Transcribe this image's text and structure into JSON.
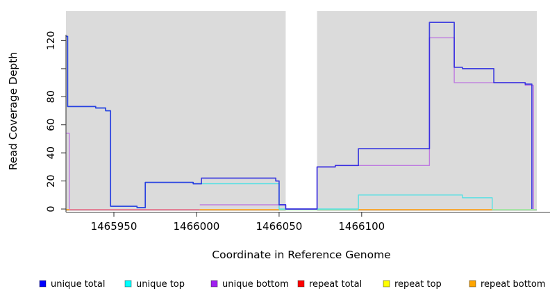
{
  "chart_data": {
    "type": "line",
    "subtype": "step-after-coverage-plot",
    "title": "",
    "xlabel": "Coordinate in Reference Genome",
    "ylabel": "Read Coverage Depth",
    "xlim": [
      1465921,
      1466206
    ],
    "ylim": [
      0,
      141
    ],
    "grid": false,
    "plot_background_color": "#DBDBDB",
    "gap_band": {
      "x0": 1466054,
      "x1": 1466073,
      "color": "#FFFFFF"
    },
    "background_bands": [
      {
        "x0": 1465921,
        "x1": 1466054,
        "color": "#DBDBDB"
      },
      {
        "x0": 1466073,
        "x1": 1466206,
        "color": "#DBDBDB"
      }
    ],
    "x_ticks": [
      {
        "value": 1465950,
        "label": "1465950"
      },
      {
        "value": 1466000,
        "label": "1466000"
      },
      {
        "value": 1466050,
        "label": "1466050"
      },
      {
        "value": 1466100,
        "label": "1466100"
      }
    ],
    "y_ticks": [
      {
        "value": 0,
        "label": "0"
      },
      {
        "value": 20,
        "label": "20"
      },
      {
        "value": 40,
        "label": "40"
      },
      {
        "value": 60,
        "label": "60"
      },
      {
        "value": 80,
        "label": "80"
      },
      {
        "value": 100,
        "label": ""
      },
      {
        "value": 120,
        "label": "120"
      }
    ],
    "series": [
      {
        "name": "unique top",
        "color": "#55E0E4",
        "width": 1.4,
        "opacity": 1,
        "paths": [
          [
            [
              1465921,
              123
            ],
            [
              1465922,
              73
            ],
            [
              1465939,
              72
            ],
            [
              1465945,
              70
            ],
            [
              1465948,
              2
            ],
            [
              1465964,
              1
            ],
            [
              1465969,
              19
            ],
            [
              1465998,
              18
            ],
            [
              1466050,
              0
            ],
            [
              1466098,
              10
            ],
            [
              1466161,
              8
            ],
            [
              1466179,
              0
            ]
          ]
        ]
      },
      {
        "name": "unique bottom",
        "color": "#BE7BE0",
        "width": 1.4,
        "opacity": 1,
        "paths": [
          [
            [
              1465921,
              54
            ],
            [
              1465923,
              0
            ]
          ],
          [
            [
              1466002,
              3
            ],
            [
              1466054,
              0
            ],
            [
              1466073,
              30
            ],
            [
              1466084,
              31
            ],
            [
              1466141,
              122
            ],
            [
              1466156,
              90
            ],
            [
              1466199,
              88
            ],
            [
              1466204,
              0
            ]
          ]
        ]
      },
      {
        "name": "unique total",
        "color": "#1A1AE0",
        "width": 1.7,
        "opacity": 0.8,
        "paths": [
          [
            [
              1465921,
              123
            ],
            [
              1465922,
              73
            ],
            [
              1465939,
              72
            ],
            [
              1465945,
              70
            ],
            [
              1465948,
              2
            ],
            [
              1465964,
              1
            ],
            [
              1465969,
              19
            ],
            [
              1465998,
              18
            ],
            [
              1466003,
              22
            ],
            [
              1466048,
              20
            ],
            [
              1466050,
              3
            ],
            [
              1466054,
              0
            ],
            [
              1466073,
              30
            ],
            [
              1466084,
              31
            ],
            [
              1466098,
              43
            ],
            [
              1466141,
              133
            ],
            [
              1466156,
              101
            ],
            [
              1466161,
              100
            ],
            [
              1466180,
              90
            ],
            [
              1466199,
              89
            ],
            [
              1466203,
              0
            ]
          ]
        ]
      }
    ],
    "baseline_segments": [
      {
        "series": "repeat bottom",
        "color": "#FF9800",
        "x0": 1465921,
        "x1": 1465923
      },
      {
        "series": "repeat total",
        "color": "#E4627E",
        "x0": 1465923,
        "x1": 1466002
      },
      {
        "series": "repeat bottom",
        "color": "#FF9800",
        "x0": 1466002,
        "x1": 1466050
      },
      {
        "series": "repeat top / unique top overlap",
        "color": "#93E693",
        "x0": 1466050,
        "x1": 1466098
      },
      {
        "series": "repeat bottom",
        "color": "#FF9800",
        "x0": 1466098,
        "x1": 1466179
      },
      {
        "series": "repeat top / unique top overlap",
        "color": "#93E693",
        "x0": 1466179,
        "x1": 1466206
      }
    ],
    "legend": {
      "position": "bottom",
      "items": [
        {
          "label": "unique total",
          "color": "#0000FF"
        },
        {
          "label": "unique top",
          "color": "#00FFFF"
        },
        {
          "label": "unique bottom",
          "color": "#A020F0"
        },
        {
          "label": "repeat total",
          "color": "#FF0000"
        },
        {
          "label": "repeat top",
          "color": "#FFFF00"
        },
        {
          "label": "repeat bottom",
          "color": "#FFA500"
        }
      ]
    }
  }
}
